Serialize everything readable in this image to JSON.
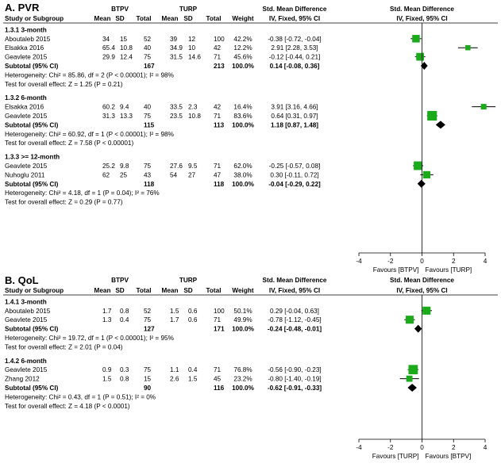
{
  "chart_data": [
    {
      "type": "forest",
      "title": "A. PVR",
      "group_headers": {
        "exp": "BTPV",
        "ctl": "TURP"
      },
      "columns": {
        "study": "Study or Subgroup",
        "mean": "Mean",
        "sd": "SD",
        "total": "Total",
        "weight": "Weight",
        "effect_top": "Std. Mean Difference",
        "effect_bottom": "IV, Fixed, 95% CI",
        "plot_top": "Std. Mean Difference",
        "plot_bottom": "IV, Fixed, 95% CI"
      },
      "axis": {
        "min": -4,
        "max": 4,
        "ticks": [
          -4,
          -2,
          0,
          2,
          4
        ],
        "tick_labels": [
          "-4",
          "-2",
          "0",
          "2",
          "4"
        ],
        "favours_left": "Favours [BTPV]",
        "favours_right": "Favours [TURP]"
      },
      "subgroups": [
        {
          "label": "1.3.1 3-month",
          "studies": [
            {
              "name": "Aboutaleb 2015",
              "m1": "34",
              "sd1": "15",
              "n1": "52",
              "m2": "39",
              "sd2": "12",
              "n2": "100",
              "weight": "42.2%",
              "ci_text": "-0.38 [-0.72, -0.04]",
              "est": -0.38,
              "lo": -0.72,
              "hi": -0.04,
              "w": 42.2
            },
            {
              "name": "Elsakka 2016",
              "m1": "65.4",
              "sd1": "10.8",
              "n1": "40",
              "m2": "34.9",
              "sd2": "10",
              "n2": "42",
              "weight": "12.2%",
              "ci_text": "2.91 [2.28, 3.53]",
              "est": 2.91,
              "lo": 2.28,
              "hi": 3.53,
              "w": 12.2
            },
            {
              "name": "Geavlete 2015",
              "m1": "29.9",
              "sd1": "12.4",
              "n1": "75",
              "m2": "31.5",
              "sd2": "14.6",
              "n2": "71",
              "weight": "45.6%",
              "ci_text": "-0.12 [-0.44, 0.21]",
              "est": -0.12,
              "lo": -0.44,
              "hi": 0.21,
              "w": 45.6
            }
          ],
          "subtotal": {
            "label": "Subtotal (95% CI)",
            "n1": "167",
            "n2": "213",
            "weight": "100.0%",
            "ci_text": "0.14 [-0.08, 0.36]",
            "est": 0.14,
            "lo": -0.08,
            "hi": 0.36
          },
          "heterogeneity": "Heterogeneity: Chi² = 85.86, df = 2 (P < 0.00001); I² = 98%",
          "overall": "Test for overall effect: Z = 1.25 (P = 0.21)"
        },
        {
          "label": "1.3.2 6-month",
          "studies": [
            {
              "name": "Elsakka 2016",
              "m1": "60.2",
              "sd1": "9.4",
              "n1": "40",
              "m2": "33.5",
              "sd2": "2.3",
              "n2": "42",
              "weight": "16.4%",
              "ci_text": "3.91 [3.16, 4.66]",
              "est": 3.91,
              "lo": 3.16,
              "hi": 4.66,
              "w": 16.4
            },
            {
              "name": "Geavlete 2015",
              "m1": "31.3",
              "sd1": "13.3",
              "n1": "75",
              "m2": "23.5",
              "sd2": "10.8",
              "n2": "71",
              "weight": "83.6%",
              "ci_text": "0.64 [0.31, 0.97]",
              "est": 0.64,
              "lo": 0.31,
              "hi": 0.97,
              "w": 83.6
            }
          ],
          "subtotal": {
            "label": "Subtotal (95% CI)",
            "n1": "115",
            "n2": "113",
            "weight": "100.0%",
            "ci_text": "1.18 [0.87, 1.48]",
            "est": 1.18,
            "lo": 0.87,
            "hi": 1.48
          },
          "heterogeneity": "Heterogeneity: Chi² = 60.92, df = 1 (P < 0.00001); I² = 98%",
          "overall": "Test for overall effect: Z = 7.58 (P < 0.00001)"
        },
        {
          "label": "1.3.3 >= 12-month",
          "studies": [
            {
              "name": "Geavlete 2015",
              "m1": "25.2",
              "sd1": "9.8",
              "n1": "75",
              "m2": "27.6",
              "sd2": "9.5",
              "n2": "71",
              "weight": "62.0%",
              "ci_text": "-0.25 [-0.57, 0.08]",
              "est": -0.25,
              "lo": -0.57,
              "hi": 0.08,
              "w": 62.0
            },
            {
              "name": "Nuhoglu 2011",
              "m1": "62",
              "sd1": "25",
              "n1": "43",
              "m2": "54",
              "sd2": "27",
              "n2": "47",
              "weight": "38.0%",
              "ci_text": "0.30 [-0.11, 0.72]",
              "est": 0.3,
              "lo": -0.11,
              "hi": 0.72,
              "w": 38.0
            }
          ],
          "subtotal": {
            "label": "Subtotal (95% CI)",
            "n1": "118",
            "n2": "118",
            "weight": "100.0%",
            "ci_text": "-0.04 [-0.29, 0.22]",
            "est": -0.04,
            "lo": -0.29,
            "hi": 0.22
          },
          "heterogeneity": "Heterogeneity: Chi² = 4.18, df = 1 (P = 0.04); I² = 76%",
          "overall": "Test for overall effect: Z = 0.29 (P = 0.77)"
        }
      ]
    },
    {
      "type": "forest",
      "title": "B. QoL",
      "group_headers": {
        "exp": "BTPV",
        "ctl": "TURP"
      },
      "columns": {
        "study": "Study or Subgroup",
        "mean": "Mean",
        "sd": "SD",
        "total": "Total",
        "weight": "Weight",
        "effect_top": "Std. Mean Difference",
        "effect_bottom": "IV, Fixed, 95% CI",
        "plot_top": "Std. Mean Difference",
        "plot_bottom": "IV, Fixed, 95% CI"
      },
      "axis": {
        "min": -4,
        "max": 4,
        "ticks": [
          -4,
          -2,
          0,
          2,
          4
        ],
        "tick_labels": [
          "-4",
          "-2",
          "0",
          "2",
          "4"
        ],
        "favours_left": "Favours [TURP]",
        "favours_right": "Favours [BTPV]"
      },
      "subgroups": [
        {
          "label": "1.4.1 3-month",
          "studies": [
            {
              "name": "Aboutaleb 2015",
              "m1": "1.7",
              "sd1": "0.8",
              "n1": "52",
              "m2": "1.5",
              "sd2": "0.6",
              "n2": "100",
              "weight": "50.1%",
              "ci_text": "0.29 [-0.04, 0.63]",
              "est": 0.29,
              "lo": -0.04,
              "hi": 0.63,
              "w": 50.1
            },
            {
              "name": "Geavlete 2015",
              "m1": "1.3",
              "sd1": "0.4",
              "n1": "75",
              "m2": "1.7",
              "sd2": "0.6",
              "n2": "71",
              "weight": "49.9%",
              "ci_text": "-0.78 [-1.12, -0.45]",
              "est": -0.78,
              "lo": -1.12,
              "hi": -0.45,
              "w": 49.9
            }
          ],
          "subtotal": {
            "label": "Subtotal (95% CI)",
            "n1": "127",
            "n2": "171",
            "weight": "100.0%",
            "ci_text": "-0.24 [-0.48, -0.01]",
            "est": -0.24,
            "lo": -0.48,
            "hi": -0.01
          },
          "heterogeneity": "Heterogeneity: Chi² = 19.72, df = 1 (P < 0.00001); I² = 95%",
          "overall": "Test for overall effect: Z = 2.01 (P = 0.04)"
        },
        {
          "label": "1.4.2 6-month",
          "studies": [
            {
              "name": "Geavlete 2015",
              "m1": "0.9",
              "sd1": "0.3",
              "n1": "75",
              "m2": "1.1",
              "sd2": "0.4",
              "n2": "71",
              "weight": "76.8%",
              "ci_text": "-0.56 [-0.90, -0.23]",
              "est": -0.56,
              "lo": -0.9,
              "hi": -0.23,
              "w": 76.8
            },
            {
              "name": "Zhang 2012",
              "m1": "1.5",
              "sd1": "0.8",
              "n1": "15",
              "m2": "2.6",
              "sd2": "1.5",
              "n2": "45",
              "weight": "23.2%",
              "ci_text": "-0.80 [-1.40, -0.19]",
              "est": -0.8,
              "lo": -1.4,
              "hi": -0.19,
              "w": 23.2
            }
          ],
          "subtotal": {
            "label": "Subtotal (95% CI)",
            "n1": "90",
            "n2": "116",
            "weight": "100.0%",
            "ci_text": "-0.62 [-0.91, -0.33]",
            "est": -0.62,
            "lo": -0.91,
            "hi": -0.33
          },
          "heterogeneity": "Heterogeneity: Chi² = 0.43, df = 1 (P = 0.51); I² = 0%",
          "overall": "Test for overall effect: Z = 4.18 (P < 0.0001)"
        }
      ]
    }
  ]
}
